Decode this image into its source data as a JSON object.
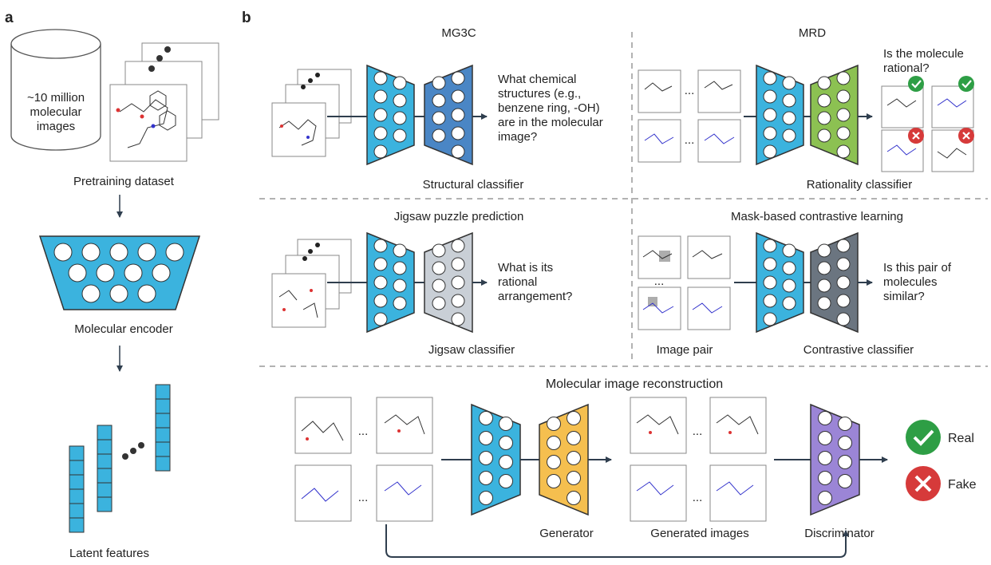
{
  "panels": {
    "a": "a",
    "b": "b"
  },
  "panel_a": {
    "dataset_lines": [
      "~10 million",
      "molecular",
      "images"
    ],
    "pretraining_label": "Pretraining dataset",
    "encoder_label": "Molecular encoder",
    "latent_label": "Latent features"
  },
  "mg3c": {
    "title": "MG3C",
    "question": [
      "What chemical",
      "structures (e.g.,",
      "benzene ring, -OH)",
      "are in the molecular",
      "image?"
    ],
    "classifier": "Structural classifier"
  },
  "mrd": {
    "title": "MRD",
    "question": [
      "Is the molecule",
      "rational?"
    ],
    "classifier": "Rationality classifier",
    "ellipsis": "..."
  },
  "jigsaw": {
    "title": "Jigsaw puzzle prediction",
    "question": [
      "What is its",
      "rational",
      "arrangement?"
    ],
    "classifier": "Jigsaw classifier"
  },
  "contrastive": {
    "title": "Mask-based contrastive learning",
    "question": [
      "Is this pair of",
      "molecules",
      "similar?"
    ],
    "pair_label": "Image pair",
    "classifier": "Contrastive classifier",
    "ellipsis": "..."
  },
  "reconstruction": {
    "title": "Molecular image reconstruction",
    "generator": "Generator",
    "generated": "Generated images",
    "discriminator": "Discriminator",
    "real": "Real",
    "fake": "Fake",
    "ellipsis": "..."
  },
  "colors": {
    "encoder": "#3bb3de",
    "structural": "#4a86c5",
    "rationality": "#8cc152",
    "jigsaw": "#c9cfd6",
    "contrastive": "#6b7580",
    "generator": "#f5bf4f",
    "discriminator": "#9b85d6",
    "check": "#2e9e45",
    "cross": "#d63a3a"
  }
}
